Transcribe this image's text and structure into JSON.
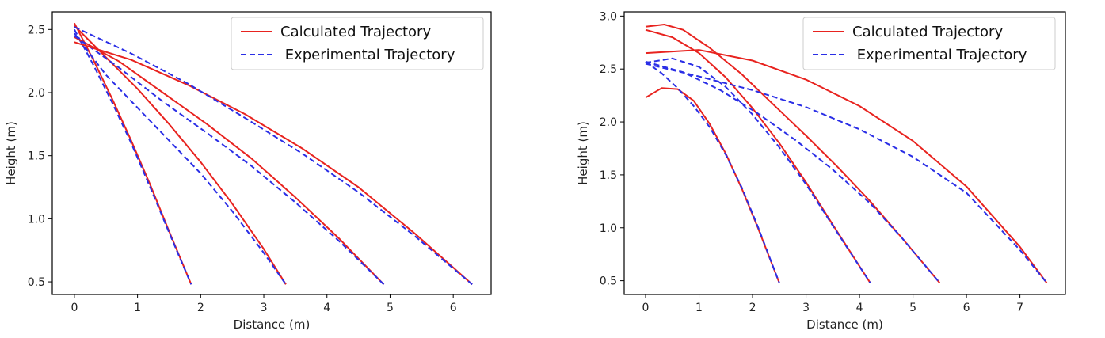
{
  "chart_data": [
    {
      "type": "line",
      "xlabel": "Distance (m)",
      "ylabel": "Height (m)",
      "xlim": [
        -0.35,
        6.6
      ],
      "ylim": [
        0.4,
        2.64
      ],
      "xticks": [
        0,
        1,
        2,
        3,
        4,
        5,
        6
      ],
      "yticks": [
        0.5,
        1.0,
        1.5,
        2.0,
        2.5
      ],
      "ytick_labels": [
        "0.5",
        "1.0",
        "1.5",
        "2.0",
        "2.5"
      ],
      "grid": false,
      "legend": {
        "placement": "top-right",
        "entries": [
          {
            "label": "Calculated Trajectory",
            "style": "solid",
            "color": "#e8231f"
          },
          {
            "label": " Experimental Trajectory",
            "style": "dashed",
            "color": "#2a2ee6"
          }
        ]
      },
      "series": [
        {
          "kind": "calculated",
          "color": "#e8231f",
          "x": [
            0,
            0.3,
            0.6,
            0.9,
            1.2,
            1.5,
            1.85
          ],
          "y": [
            2.55,
            2.26,
            1.95,
            1.62,
            1.27,
            0.9,
            0.48
          ]
        },
        {
          "kind": "experimental",
          "color": "#2a2ee6",
          "x": [
            0,
            0.3,
            0.6,
            0.9,
            1.2,
            1.5,
            1.85
          ],
          "y": [
            2.5,
            2.22,
            1.92,
            1.6,
            1.25,
            0.89,
            0.48
          ]
        },
        {
          "kind": "calculated",
          "color": "#e8231f",
          "x": [
            0,
            0.5,
            1.0,
            1.5,
            2.0,
            2.5,
            3.0,
            3.35
          ],
          "y": [
            2.53,
            2.28,
            2.03,
            1.75,
            1.45,
            1.12,
            0.76,
            0.48
          ]
        },
        {
          "kind": "experimental",
          "color": "#2a2ee6",
          "x": [
            0,
            0.5,
            1.0,
            1.5,
            2.0,
            2.5,
            3.0,
            3.35
          ],
          "y": [
            2.47,
            2.14,
            1.88,
            1.62,
            1.36,
            1.06,
            0.73,
            0.48
          ]
        },
        {
          "kind": "calculated",
          "color": "#e8231f",
          "x": [
            0,
            0.7,
            1.4,
            2.1,
            2.8,
            3.5,
            4.2,
            4.9
          ],
          "y": [
            2.44,
            2.25,
            2.0,
            1.75,
            1.48,
            1.17,
            0.84,
            0.48
          ]
        },
        {
          "kind": "experimental",
          "color": "#2a2ee6",
          "x": [
            0,
            0.7,
            1.4,
            2.1,
            2.8,
            3.5,
            4.2,
            4.9
          ],
          "y": [
            2.45,
            2.2,
            1.93,
            1.68,
            1.42,
            1.13,
            0.82,
            0.48
          ]
        },
        {
          "kind": "calculated",
          "color": "#e8231f",
          "x": [
            0,
            0.9,
            1.8,
            2.7,
            3.6,
            4.5,
            5.4,
            6.3
          ],
          "y": [
            2.4,
            2.26,
            2.06,
            1.83,
            1.56,
            1.25,
            0.88,
            0.48
          ]
        },
        {
          "kind": "experimental",
          "color": "#2a2ee6",
          "x": [
            0,
            0.9,
            1.8,
            2.7,
            3.6,
            4.5,
            5.4,
            6.3
          ],
          "y": [
            2.52,
            2.31,
            2.07,
            1.8,
            1.52,
            1.21,
            0.86,
            0.48
          ]
        }
      ]
    },
    {
      "type": "line",
      "xlabel": "Distance (m)",
      "ylabel": "Height (m)",
      "xlim": [
        -0.4,
        7.85
      ],
      "ylim": [
        0.37,
        3.04
      ],
      "xticks": [
        0,
        1,
        2,
        3,
        4,
        5,
        6,
        7
      ],
      "yticks": [
        0.5,
        1.0,
        1.5,
        2.0,
        2.5,
        3.0
      ],
      "ytick_labels": [
        "0.5",
        "1.0",
        "1.5",
        "2.0",
        "2.5",
        "3.0"
      ],
      "grid": false,
      "legend": {
        "placement": "top-right",
        "entries": [
          {
            "label": "Calculated Trajectory",
            "style": "solid",
            "color": "#e8231f"
          },
          {
            "label": " Experimental Trajectory",
            "style": "dashed",
            "color": "#2a2ee6"
          }
        ]
      },
      "series": [
        {
          "kind": "calculated",
          "color": "#e8231f",
          "x": [
            0,
            0.3,
            0.6,
            0.9,
            1.2,
            1.5,
            1.8,
            2.1,
            2.5
          ],
          "y": [
            2.23,
            2.32,
            2.31,
            2.2,
            1.98,
            1.7,
            1.37,
            1.0,
            0.48
          ]
        },
        {
          "kind": "experimental",
          "color": "#2a2ee6",
          "x": [
            0,
            0.3,
            0.6,
            0.9,
            1.2,
            1.5,
            1.8,
            2.1,
            2.5
          ],
          "y": [
            2.57,
            2.46,
            2.32,
            2.15,
            1.95,
            1.69,
            1.38,
            1.01,
            0.48
          ]
        },
        {
          "kind": "calculated",
          "color": "#e8231f",
          "x": [
            0,
            0.5,
            1.0,
            1.5,
            2.0,
            2.5,
            3.0,
            3.5,
            4.2
          ],
          "y": [
            2.87,
            2.8,
            2.65,
            2.42,
            2.13,
            1.8,
            1.43,
            1.03,
            0.48
          ]
        },
        {
          "kind": "experimental",
          "color": "#2a2ee6",
          "x": [
            0,
            0.5,
            1.0,
            1.5,
            2.0,
            2.5,
            3.0,
            3.5,
            4.2
          ],
          "y": [
            2.56,
            2.6,
            2.52,
            2.33,
            2.07,
            1.76,
            1.41,
            1.02,
            0.48
          ]
        },
        {
          "kind": "calculated",
          "color": "#e8231f",
          "x": [
            0,
            0.35,
            0.7,
            1.2,
            1.8,
            2.4,
            3.0,
            3.6,
            4.2,
            4.8,
            5.5
          ],
          "y": [
            2.9,
            2.92,
            2.87,
            2.7,
            2.45,
            2.16,
            1.87,
            1.57,
            1.25,
            0.9,
            0.48
          ]
        },
        {
          "kind": "experimental",
          "color": "#2a2ee6",
          "x": [
            0,
            0.7,
            1.4,
            2.1,
            2.8,
            3.5,
            4.2,
            4.8,
            5.5
          ],
          "y": [
            2.57,
            2.47,
            2.3,
            2.08,
            1.83,
            1.55,
            1.23,
            0.9,
            0.48
          ]
        },
        {
          "kind": "calculated",
          "color": "#e8231f",
          "x": [
            0,
            1.0,
            2.0,
            3.0,
            4.0,
            5.0,
            6.0,
            7.0,
            7.5
          ],
          "y": [
            2.65,
            2.68,
            2.58,
            2.4,
            2.15,
            1.82,
            1.39,
            0.82,
            0.48
          ]
        },
        {
          "kind": "experimental",
          "color": "#2a2ee6",
          "x": [
            0,
            1.0,
            2.0,
            3.0,
            4.0,
            5.0,
            6.0,
            7.0,
            7.5
          ],
          "y": [
            2.55,
            2.43,
            2.3,
            2.14,
            1.93,
            1.67,
            1.33,
            0.79,
            0.48
          ]
        }
      ]
    }
  ]
}
